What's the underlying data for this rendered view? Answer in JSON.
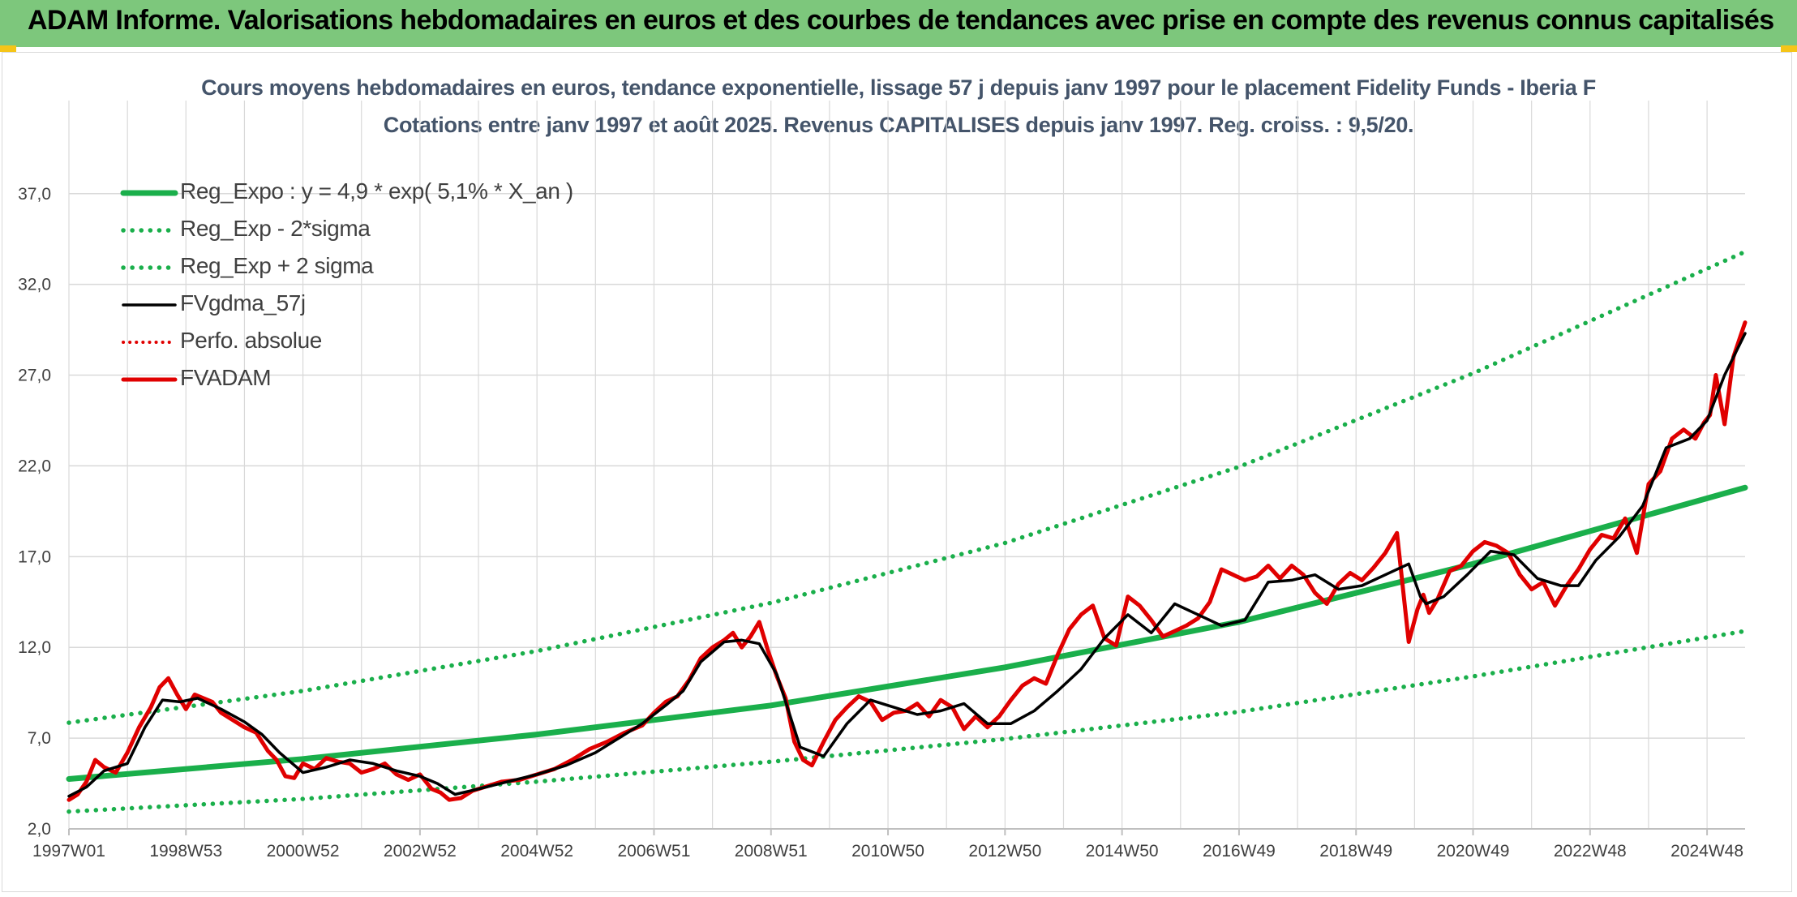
{
  "header": {
    "title": "ADAM Informe. Valorisations hebdomadaires en euros et des courbes de tendances avec prise en compte des revenus connus capitalisés"
  },
  "colors": {
    "header_bg": "#7dc77c",
    "trend_green": "#1aaf4b",
    "fvgdma_black": "#000000",
    "adam_red": "#e00000",
    "grid": "#d9d9d9",
    "title_text": "#44546a"
  },
  "chart_data": {
    "type": "line",
    "title": "Cours moyens hebdomadaires en euros, tendance exponentielle, lissage 57 j depuis janv 1997 pour le placement Fidelity Funds - Iberia F",
    "subtitle": "Cotations entre janv 1997 et août 2025. Revenus CAPITALISES depuis janv 1997. Reg. croiss. : 9,5/20.",
    "xlabel": "",
    "ylabel": "",
    "x_range": [
      1997.0,
      2025.65
    ],
    "ylim": [
      2.0,
      39.0
    ],
    "y_ticks": [
      "2,0",
      "7,0",
      "12,0",
      "17,0",
      "22,0",
      "27,0",
      "32,0",
      "37,0"
    ],
    "x_tick_labels": [
      "1997W01",
      "1998W53",
      "2000W52",
      "2002W52",
      "2004W52",
      "2006W51",
      "2008W51",
      "2010W50",
      "2012W50",
      "2014W50",
      "2016W49",
      "2018W49",
      "2020W49",
      "2022W48",
      "2024W48"
    ],
    "x_tick_years": [
      1997.0,
      1999.0,
      2001.0,
      2003.0,
      2005.0,
      2007.0,
      2009.0,
      2011.0,
      2013.0,
      2015.0,
      2017.0,
      2019.0,
      2021.0,
      2023.0,
      2025.0
    ],
    "grid": true,
    "legend_position": "top-left",
    "series": [
      {
        "name": "Reg_Expo : y = 4,9 * exp( 5,1% *  X_an )",
        "style": "solid-thick-green",
        "x": [
          1997.0,
          2001.0,
          2005.0,
          2009.0,
          2013.0,
          2017.0,
          2021.0,
          2025.65
        ],
        "y": [
          4.75,
          5.85,
          7.2,
          8.8,
          10.9,
          13.4,
          16.6,
          20.8
        ]
      },
      {
        "name": "Reg_Exp - 2*sigma",
        "style": "dotted-green",
        "x": [
          1997.0,
          2001.0,
          2005.0,
          2009.0,
          2013.0,
          2017.0,
          2021.0,
          2025.65
        ],
        "y": [
          2.95,
          3.65,
          4.6,
          5.7,
          6.95,
          8.45,
          10.4,
          12.9
        ]
      },
      {
        "name": "Reg_Exp + 2 sigma",
        "style": "dotted-green",
        "x": [
          1997.0,
          2001.0,
          2005.0,
          2009.0,
          2013.0,
          2017.0,
          2021.0,
          2025.65
        ],
        "y": [
          7.85,
          9.6,
          11.8,
          14.45,
          17.75,
          21.95,
          27.1,
          33.8
        ]
      },
      {
        "name": "FVgdma_57j",
        "style": "solid-black",
        "x": [
          1997.0,
          1997.3,
          1997.6,
          1998.0,
          1998.3,
          1998.6,
          1998.9,
          1999.2,
          1999.6,
          2000.0,
          2000.3,
          2000.6,
          2001.0,
          2001.4,
          2001.8,
          2002.2,
          2002.6,
          2003.0,
          2003.3,
          2003.6,
          2004.0,
          2004.5,
          2005.0,
          2005.5,
          2006.0,
          2006.4,
          2006.8,
          2007.2,
          2007.5,
          2007.8,
          2008.2,
          2008.5,
          2008.8,
          2009.1,
          2009.5,
          2009.9,
          2010.3,
          2010.7,
          2011.1,
          2011.5,
          2011.9,
          2012.3,
          2012.7,
          2013.1,
          2013.5,
          2013.9,
          2014.3,
          2014.7,
          2015.1,
          2015.5,
          2015.9,
          2016.3,
          2016.7,
          2017.1,
          2017.5,
          2017.9,
          2018.3,
          2018.7,
          2019.1,
          2019.5,
          2019.9,
          2020.1,
          2020.2,
          2020.5,
          2020.9,
          2021.3,
          2021.7,
          2022.1,
          2022.5,
          2022.8,
          2023.1,
          2023.5,
          2023.9,
          2024.3,
          2024.7,
          2025.0,
          2025.3,
          2025.65
        ],
        "y": [
          3.8,
          4.3,
          5.2,
          5.6,
          7.6,
          9.1,
          9.0,
          9.2,
          8.6,
          7.9,
          7.2,
          6.2,
          5.1,
          5.4,
          5.8,
          5.6,
          5.2,
          4.9,
          4.5,
          3.9,
          4.2,
          4.6,
          5.0,
          5.5,
          6.2,
          7.0,
          7.8,
          8.8,
          9.6,
          11.2,
          12.3,
          12.4,
          12.2,
          10.5,
          6.5,
          6.0,
          7.8,
          9.1,
          8.7,
          8.3,
          8.5,
          8.9,
          7.8,
          7.8,
          8.5,
          9.6,
          10.8,
          12.5,
          13.8,
          12.8,
          14.4,
          13.8,
          13.2,
          13.5,
          15.6,
          15.7,
          16.0,
          15.2,
          15.4,
          16.0,
          16.6,
          14.8,
          14.4,
          14.8,
          16.0,
          17.3,
          17.1,
          15.8,
          15.4,
          15.4,
          16.8,
          18.1,
          19.8,
          23.0,
          23.5,
          24.5,
          27.0,
          29.3
        ]
      },
      {
        "name": "Perfo. absolue",
        "style": "dotted-red",
        "x": [],
        "y": []
      },
      {
        "name": "FVADAM",
        "style": "solid-thick-red",
        "x": [
          1997.0,
          1997.15,
          1997.3,
          1997.45,
          1997.6,
          1997.8,
          1998.0,
          1998.2,
          1998.4,
          1998.55,
          1998.7,
          1998.85,
          1999.0,
          1999.15,
          1999.3,
          1999.45,
          1999.6,
          1999.8,
          2000.0,
          2000.2,
          2000.4,
          2000.55,
          2000.7,
          2000.85,
          2001.0,
          2001.2,
          2001.4,
          2001.6,
          2001.8,
          2002.0,
          2002.2,
          2002.4,
          2002.6,
          2002.8,
          2003.0,
          2003.2,
          2003.35,
          2003.5,
          2003.7,
          2003.9,
          2004.1,
          2004.4,
          2004.7,
          2005.0,
          2005.3,
          2005.6,
          2005.9,
          2006.2,
          2006.5,
          2006.8,
          2007.0,
          2007.2,
          2007.4,
          2007.6,
          2007.8,
          2008.0,
          2008.2,
          2008.35,
          2008.5,
          2008.65,
          2008.8,
          2008.95,
          2009.1,
          2009.25,
          2009.4,
          2009.55,
          2009.7,
          2009.9,
          2010.1,
          2010.3,
          2010.5,
          2010.7,
          2010.9,
          2011.1,
          2011.3,
          2011.5,
          2011.7,
          2011.9,
          2012.1,
          2012.3,
          2012.5,
          2012.7,
          2012.9,
          2013.1,
          2013.3,
          2013.5,
          2013.7,
          2013.9,
          2014.1,
          2014.3,
          2014.5,
          2014.7,
          2014.9,
          2015.1,
          2015.3,
          2015.5,
          2015.7,
          2015.9,
          2016.1,
          2016.3,
          2016.5,
          2016.7,
          2016.9,
          2017.1,
          2017.3,
          2017.5,
          2017.7,
          2017.9,
          2018.1,
          2018.3,
          2018.5,
          2018.7,
          2018.9,
          2019.1,
          2019.3,
          2019.5,
          2019.7,
          2019.9,
          2020.05,
          2020.15,
          2020.25,
          2020.4,
          2020.6,
          2020.8,
          2021.0,
          2021.2,
          2021.4,
          2021.6,
          2021.8,
          2022.0,
          2022.2,
          2022.4,
          2022.6,
          2022.8,
          2023.0,
          2023.2,
          2023.4,
          2023.6,
          2023.8,
          2024.0,
          2024.2,
          2024.4,
          2024.6,
          2024.8,
          2024.95,
          2025.05,
          2025.15,
          2025.3,
          2025.45,
          2025.65
        ],
        "y": [
          3.6,
          3.9,
          4.6,
          5.8,
          5.4,
          5.1,
          6.2,
          7.6,
          8.7,
          9.8,
          10.3,
          9.4,
          8.6,
          9.4,
          9.2,
          9.0,
          8.4,
          8.0,
          7.6,
          7.3,
          6.3,
          5.8,
          4.9,
          4.8,
          5.6,
          5.3,
          5.9,
          5.7,
          5.6,
          5.1,
          5.3,
          5.6,
          5.0,
          4.7,
          5.0,
          4.2,
          4.0,
          3.6,
          3.7,
          4.1,
          4.3,
          4.6,
          4.7,
          5.0,
          5.3,
          5.8,
          6.4,
          6.8,
          7.3,
          7.7,
          8.4,
          9.0,
          9.3,
          10.2,
          11.4,
          12.0,
          12.4,
          12.8,
          12.0,
          12.6,
          13.4,
          11.8,
          10.4,
          9.2,
          6.8,
          5.8,
          5.5,
          6.8,
          8.0,
          8.7,
          9.3,
          9.0,
          8.0,
          8.4,
          8.5,
          8.9,
          8.2,
          9.1,
          8.7,
          7.5,
          8.2,
          7.6,
          8.2,
          9.1,
          9.9,
          10.3,
          10.0,
          11.6,
          13.0,
          13.8,
          14.3,
          12.5,
          12.1,
          14.8,
          14.3,
          13.5,
          12.6,
          12.9,
          13.2,
          13.6,
          14.5,
          16.3,
          16.0,
          15.7,
          15.9,
          16.5,
          15.8,
          16.5,
          16.0,
          15.0,
          14.4,
          15.5,
          16.1,
          15.7,
          16.4,
          17.2,
          18.3,
          12.3,
          14.1,
          14.9,
          13.9,
          14.7,
          16.2,
          16.5,
          17.3,
          17.8,
          17.6,
          17.2,
          16.0,
          15.2,
          15.6,
          14.3,
          15.4,
          16.3,
          17.4,
          18.2,
          18.0,
          19.1,
          17.2,
          21.0,
          21.7,
          23.5,
          24.0,
          23.5,
          24.4,
          24.8,
          27.0,
          24.3,
          28.0,
          29.9
        ]
      }
    ]
  }
}
